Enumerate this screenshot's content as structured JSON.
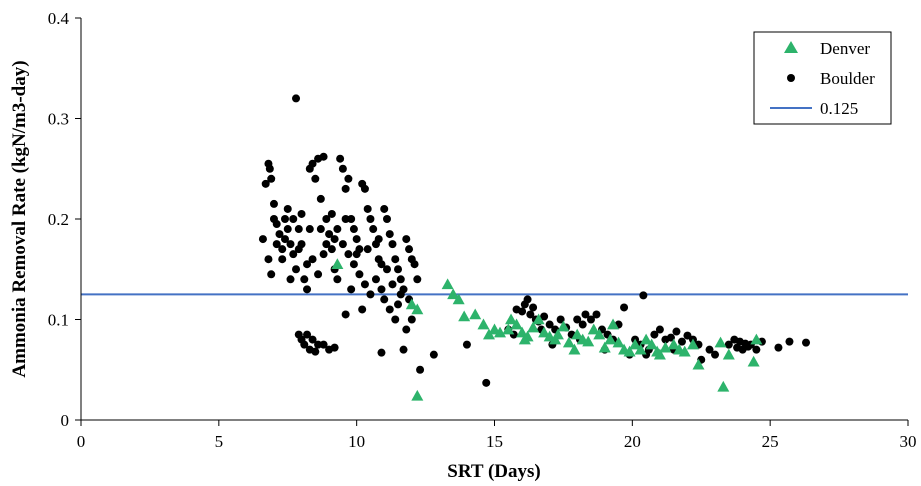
{
  "chart_data": {
    "type": "scatter",
    "xlabel": "SRT (Days)",
    "ylabel": "Ammonia Removal Rate (kgN/m3-day)",
    "xlim": [
      0,
      30
    ],
    "ylim": [
      0,
      0.4
    ],
    "xticks": [
      "0",
      "5",
      "10",
      "15",
      "20",
      "25",
      "30"
    ],
    "yticks": [
      "0",
      "0.1",
      "0.2",
      "0.3",
      "0.4"
    ],
    "grid": false,
    "legend_position": "top-right",
    "colors": {
      "denver": "#2db36b",
      "boulder": "#000000",
      "reference": "#4472c4"
    },
    "reference_line": {
      "name": "0.125",
      "y": 0.125
    },
    "series": [
      {
        "name": "Denver",
        "marker": "triangle",
        "points": [
          [
            9.3,
            0.155
          ],
          [
            12.0,
            0.115
          ],
          [
            12.2,
            0.11
          ],
          [
            12.2,
            0.024
          ],
          [
            13.3,
            0.135
          ],
          [
            13.5,
            0.125
          ],
          [
            13.7,
            0.12
          ],
          [
            13.9,
            0.103
          ],
          [
            14.3,
            0.105
          ],
          [
            14.6,
            0.095
          ],
          [
            14.8,
            0.085
          ],
          [
            15.0,
            0.09
          ],
          [
            15.2,
            0.087
          ],
          [
            15.5,
            0.09
          ],
          [
            15.6,
            0.1
          ],
          [
            15.8,
            0.095
          ],
          [
            16.0,
            0.087
          ],
          [
            16.1,
            0.08
          ],
          [
            16.2,
            0.083
          ],
          [
            16.4,
            0.092
          ],
          [
            16.6,
            0.1
          ],
          [
            16.8,
            0.087
          ],
          [
            17.0,
            0.083
          ],
          [
            17.2,
            0.08
          ],
          [
            17.3,
            0.085
          ],
          [
            17.5,
            0.093
          ],
          [
            17.7,
            0.077
          ],
          [
            17.9,
            0.07
          ],
          [
            18.0,
            0.085
          ],
          [
            18.2,
            0.08
          ],
          [
            18.4,
            0.078
          ],
          [
            18.6,
            0.09
          ],
          [
            18.8,
            0.085
          ],
          [
            19.0,
            0.072
          ],
          [
            19.2,
            0.08
          ],
          [
            19.3,
            0.095
          ],
          [
            19.5,
            0.077
          ],
          [
            19.7,
            0.07
          ],
          [
            19.9,
            0.068
          ],
          [
            20.1,
            0.075
          ],
          [
            20.3,
            0.07
          ],
          [
            20.5,
            0.08
          ],
          [
            20.7,
            0.075
          ],
          [
            20.9,
            0.068
          ],
          [
            21.0,
            0.065
          ],
          [
            21.2,
            0.072
          ],
          [
            21.5,
            0.075
          ],
          [
            21.7,
            0.07
          ],
          [
            21.9,
            0.068
          ],
          [
            22.2,
            0.075
          ],
          [
            22.4,
            0.055
          ],
          [
            23.2,
            0.077
          ],
          [
            23.3,
            0.033
          ],
          [
            23.5,
            0.065
          ],
          [
            24.4,
            0.058
          ],
          [
            24.5,
            0.08
          ]
        ]
      },
      {
        "name": "Boulder",
        "marker": "circle",
        "points": [
          [
            7.8,
            0.32
          ],
          [
            6.8,
            0.255
          ],
          [
            6.85,
            0.25
          ],
          [
            6.9,
            0.24
          ],
          [
            6.7,
            0.235
          ],
          [
            6.6,
            0.18
          ],
          [
            6.8,
            0.16
          ],
          [
            6.9,
            0.145
          ],
          [
            7.0,
            0.2
          ],
          [
            7.1,
            0.195
          ],
          [
            7.2,
            0.185
          ],
          [
            7.3,
            0.17
          ],
          [
            7.4,
            0.2
          ],
          [
            7.5,
            0.21
          ],
          [
            7.6,
            0.175
          ],
          [
            7.7,
            0.165
          ],
          [
            7.8,
            0.15
          ],
          [
            7.9,
            0.19
          ],
          [
            8.0,
            0.205
          ],
          [
            8.1,
            0.14
          ],
          [
            8.2,
            0.13
          ],
          [
            8.3,
            0.25
          ],
          [
            8.4,
            0.255
          ],
          [
            8.5,
            0.24
          ],
          [
            8.6,
            0.26
          ],
          [
            8.7,
            0.22
          ],
          [
            8.8,
            0.262
          ],
          [
            8.9,
            0.2
          ],
          [
            9.0,
            0.185
          ],
          [
            9.1,
            0.17
          ],
          [
            9.2,
            0.15
          ],
          [
            9.3,
            0.14
          ],
          [
            9.4,
            0.26
          ],
          [
            9.5,
            0.25
          ],
          [
            9.6,
            0.23
          ],
          [
            9.7,
            0.24
          ],
          [
            9.8,
            0.2
          ],
          [
            9.9,
            0.19
          ],
          [
            10.0,
            0.18
          ],
          [
            10.1,
            0.17
          ],
          [
            10.2,
            0.235
          ],
          [
            10.3,
            0.23
          ],
          [
            10.4,
            0.21
          ],
          [
            10.5,
            0.2
          ],
          [
            10.6,
            0.19
          ],
          [
            10.7,
            0.175
          ],
          [
            10.8,
            0.16
          ],
          [
            10.9,
            0.155
          ],
          [
            11.0,
            0.21
          ],
          [
            11.1,
            0.2
          ],
          [
            11.2,
            0.185
          ],
          [
            11.3,
            0.175
          ],
          [
            11.4,
            0.16
          ],
          [
            11.5,
            0.15
          ],
          [
            11.6,
            0.14
          ],
          [
            11.7,
            0.13
          ],
          [
            11.8,
            0.18
          ],
          [
            11.9,
            0.17
          ],
          [
            12.0,
            0.16
          ],
          [
            12.1,
            0.155
          ],
          [
            12.2,
            0.14
          ],
          [
            11.9,
            0.12
          ],
          [
            12.0,
            0.1
          ],
          [
            11.5,
            0.115
          ],
          [
            11.8,
            0.09
          ],
          [
            11.7,
            0.07
          ],
          [
            10.9,
            0.067
          ],
          [
            12.3,
            0.05
          ],
          [
            12.8,
            0.065
          ],
          [
            7.9,
            0.085
          ],
          [
            8.0,
            0.08
          ],
          [
            8.1,
            0.075
          ],
          [
            8.2,
            0.085
          ],
          [
            8.3,
            0.07
          ],
          [
            8.4,
            0.08
          ],
          [
            8.5,
            0.068
          ],
          [
            8.6,
            0.075
          ],
          [
            8.8,
            0.075
          ],
          [
            9.0,
            0.07
          ],
          [
            9.2,
            0.072
          ],
          [
            7.0,
            0.215
          ],
          [
            7.1,
            0.175
          ],
          [
            7.3,
            0.16
          ],
          [
            7.5,
            0.19
          ],
          [
            7.6,
            0.14
          ],
          [
            7.7,
            0.2
          ],
          [
            8.0,
            0.175
          ],
          [
            8.2,
            0.155
          ],
          [
            8.4,
            0.16
          ],
          [
            8.6,
            0.145
          ],
          [
            8.7,
            0.19
          ],
          [
            8.9,
            0.175
          ],
          [
            9.1,
            0.205
          ],
          [
            9.3,
            0.19
          ],
          [
            9.5,
            0.175
          ],
          [
            9.7,
            0.165
          ],
          [
            9.9,
            0.155
          ],
          [
            10.1,
            0.145
          ],
          [
            10.3,
            0.135
          ],
          [
            10.5,
            0.125
          ],
          [
            10.7,
            0.14
          ],
          [
            10.9,
            0.13
          ],
          [
            11.0,
            0.12
          ],
          [
            11.2,
            0.11
          ],
          [
            11.4,
            0.1
          ],
          [
            11.6,
            0.125
          ],
          [
            7.4,
            0.18
          ],
          [
            7.9,
            0.17
          ],
          [
            8.3,
            0.19
          ],
          [
            8.8,
            0.165
          ],
          [
            9.2,
            0.18
          ],
          [
            9.6,
            0.2
          ],
          [
            10.0,
            0.165
          ],
          [
            10.4,
            0.17
          ],
          [
            10.8,
            0.18
          ],
          [
            11.1,
            0.15
          ],
          [
            11.3,
            0.135
          ],
          [
            9.8,
            0.13
          ],
          [
            10.2,
            0.11
          ],
          [
            9.6,
            0.105
          ],
          [
            14.0,
            0.075
          ],
          [
            14.7,
            0.037
          ],
          [
            15.5,
            0.09
          ],
          [
            15.8,
            0.11
          ],
          [
            16.0,
            0.108
          ],
          [
            16.1,
            0.115
          ],
          [
            16.2,
            0.12
          ],
          [
            16.3,
            0.105
          ],
          [
            16.4,
            0.112
          ],
          [
            16.5,
            0.1
          ],
          [
            16.6,
            0.098
          ],
          [
            16.8,
            0.103
          ],
          [
            17.0,
            0.095
          ],
          [
            17.2,
            0.09
          ],
          [
            17.4,
            0.1
          ],
          [
            17.6,
            0.092
          ],
          [
            17.8,
            0.085
          ],
          [
            18.0,
            0.1
          ],
          [
            18.2,
            0.095
          ],
          [
            18.3,
            0.105
          ],
          [
            18.5,
            0.1
          ],
          [
            18.7,
            0.105
          ],
          [
            18.9,
            0.09
          ],
          [
            19.1,
            0.085
          ],
          [
            19.3,
            0.08
          ],
          [
            19.5,
            0.095
          ],
          [
            19.7,
            0.112
          ],
          [
            19.9,
            0.065
          ],
          [
            20.1,
            0.08
          ],
          [
            20.3,
            0.075
          ],
          [
            20.4,
            0.124
          ],
          [
            20.6,
            0.07
          ],
          [
            20.8,
            0.085
          ],
          [
            21.0,
            0.09
          ],
          [
            21.2,
            0.08
          ],
          [
            21.4,
            0.082
          ],
          [
            21.6,
            0.088
          ],
          [
            21.8,
            0.078
          ],
          [
            22.0,
            0.084
          ],
          [
            22.2,
            0.08
          ],
          [
            22.4,
            0.075
          ],
          [
            22.8,
            0.07
          ],
          [
            23.0,
            0.065
          ],
          [
            23.5,
            0.075
          ],
          [
            23.7,
            0.08
          ],
          [
            23.8,
            0.072
          ],
          [
            23.9,
            0.078
          ],
          [
            24.0,
            0.07
          ],
          [
            24.1,
            0.076
          ],
          [
            24.2,
            0.073
          ],
          [
            24.3,
            0.075
          ],
          [
            24.5,
            0.07
          ],
          [
            24.7,
            0.078
          ],
          [
            25.3,
            0.072
          ],
          [
            25.7,
            0.078
          ],
          [
            26.3,
            0.077
          ],
          [
            15.7,
            0.085
          ],
          [
            16.7,
            0.09
          ],
          [
            17.1,
            0.075
          ],
          [
            18.1,
            0.08
          ],
          [
            19.0,
            0.07
          ],
          [
            20.5,
            0.065
          ],
          [
            21.5,
            0.07
          ],
          [
            22.5,
            0.06
          ]
        ]
      }
    ]
  }
}
